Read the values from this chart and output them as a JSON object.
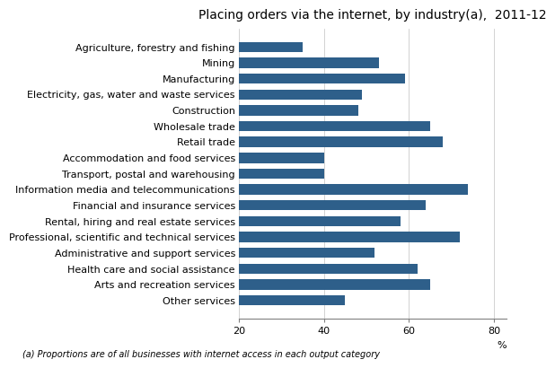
{
  "title": "Placing orders via the internet, by industry(a),  2011-12",
  "footnote": "(a) Proportions are of all businesses with internet access in each output category",
  "xlabel": "%",
  "categories": [
    "Agriculture, forestry and fishing",
    "Mining",
    "Manufacturing",
    "Electricity, gas, water and waste services",
    "Construction",
    "Wholesale trade",
    "Retail trade",
    "Accommodation and food services",
    "Transport, postal and warehousing",
    "Information media and telecommunications",
    "Financial and insurance services",
    "Rental, hiring and real estate services",
    "Professional, scientific and technical services",
    "Administrative and support services",
    "Health care and social assistance",
    "Arts and recreation services",
    "Other services"
  ],
  "values": [
    35,
    53,
    59,
    49,
    48,
    65,
    68,
    40,
    40,
    74,
    64,
    58,
    72,
    52,
    62,
    65,
    45
  ],
  "bar_color": "#2E5F8A",
  "xlim": [
    20,
    83
  ],
  "xticks": [
    20,
    40,
    60,
    80
  ],
  "xticklabels": [
    "20",
    "40",
    "60",
    "80"
  ],
  "title_fontsize": 10,
  "label_fontsize": 8,
  "tick_fontsize": 8,
  "footnote_fontsize": 7,
  "bar_height": 0.65
}
